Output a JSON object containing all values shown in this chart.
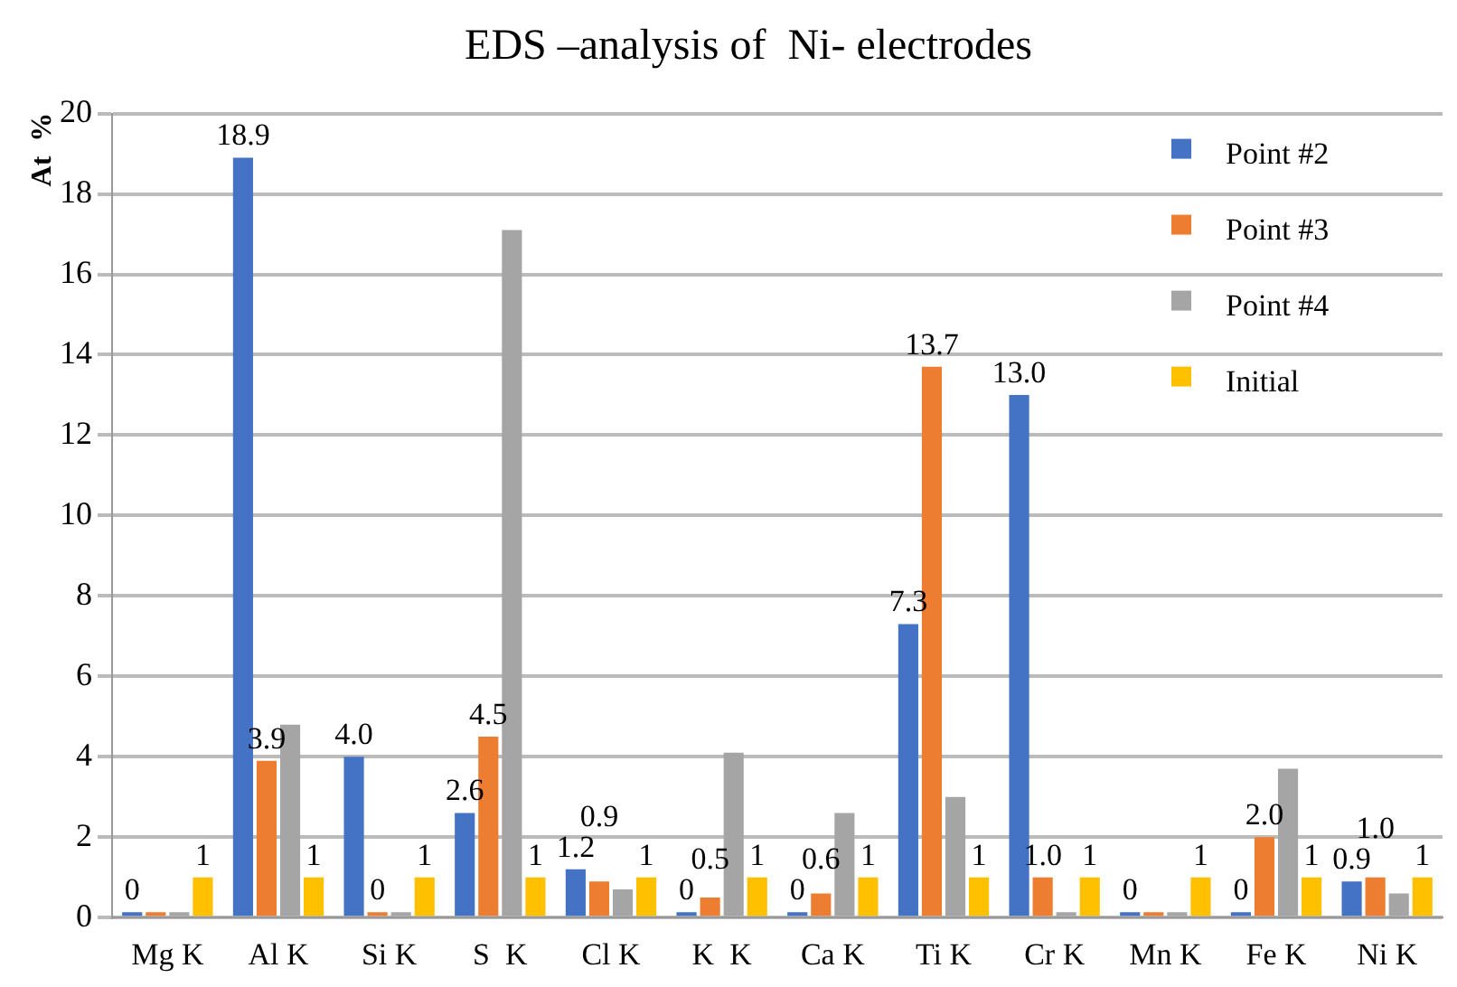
{
  "chart_data": {
    "type": "bar",
    "title": "EDS –analysis of  Ni- electrodes",
    "ylabel": "At  %",
    "categories": [
      "Mg K",
      "Al K",
      "Si K",
      "S  K",
      "Cl K",
      "K  K",
      "Ca K",
      "Ti K",
      "Cr K",
      "Mn K",
      "Fe K",
      "Ni K"
    ],
    "series": [
      {
        "name": "Point #2",
        "color": "#4472c4",
        "values": [
          0,
          18.9,
          4.0,
          2.6,
          1.2,
          0,
          0,
          7.3,
          13.0,
          0,
          0,
          0.9
        ],
        "value_labels": [
          "0",
          "18.9",
          "4.0",
          "2.6",
          "1.2",
          "0",
          "0",
          "7.3",
          "13.0",
          "0",
          "0",
          "0.9"
        ]
      },
      {
        "name": "Point #3",
        "color": "#ed7d31",
        "values": [
          0,
          3.9,
          0,
          4.5,
          0.9,
          0.5,
          0.6,
          13.7,
          1.0,
          0,
          2.0,
          1.0
        ],
        "value_labels": [
          null,
          "3.9",
          "0",
          "4.5",
          "0.9",
          "0.5",
          "0.6",
          "13.7",
          "1.0",
          null,
          "2.0",
          "1.0"
        ]
      },
      {
        "name": "Point #4",
        "color": "#a5a5a5",
        "values": [
          0,
          4.8,
          0,
          17.1,
          0.7,
          4.1,
          2.6,
          3.0,
          0,
          0,
          3.7,
          0.6
        ]
      },
      {
        "name": "Initial",
        "color": "#ffc000",
        "values": [
          1,
          1,
          1,
          1,
          1,
          1,
          1,
          1,
          1,
          1,
          1,
          1
        ],
        "value_labels": [
          "1",
          "1",
          "1",
          "1",
          "1",
          "1",
          "1",
          "1",
          "1",
          "1",
          "1",
          "1"
        ]
      }
    ],
    "ylim": [
      0,
      20
    ],
    "yticks": [
      0,
      2,
      4,
      6,
      8,
      10,
      12,
      14,
      16,
      18,
      20
    ],
    "grid": "y",
    "legend": "top right"
  }
}
